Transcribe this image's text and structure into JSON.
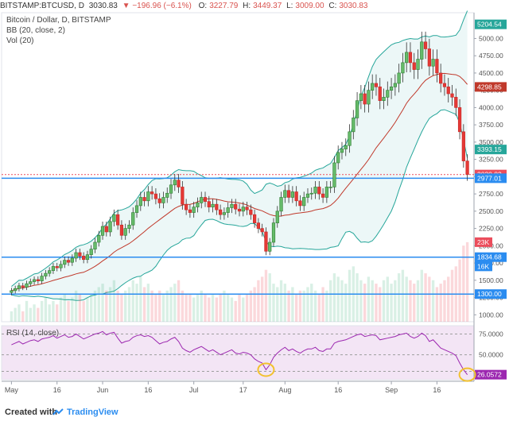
{
  "header": {
    "symbol": "BITSTAMP:BTCUSD, D",
    "last": "3030.83",
    "change": "−196.96 (−6.1%)",
    "o_label": "O:",
    "o": "3227.79",
    "h_label": "H:",
    "h": "3449.37",
    "l_label": "L:",
    "l": "3009.00",
    "c_label": "C:",
    "c": "3030.83"
  },
  "legend": {
    "title": "Bitcoin / Dollar, D, BITSTAMP",
    "bb": "BB (20, close, 2)",
    "vol": "Vol (20)",
    "rsi": "RSI (14, close)"
  },
  "colors": {
    "up": "#53b987",
    "down": "#eb4d5c",
    "accent": "#2a8cf0",
    "bb": "#26a69a",
    "ma": "#c0392b",
    "rsi": "#9c27b0"
  },
  "footer": {
    "created": "Created with",
    "brand": "TradingView"
  },
  "chart_data": [
    {
      "type": "candlestick",
      "title": "Bitcoin / Dollar, D, BITSTAMP",
      "x_ticks": [
        "May",
        "16",
        "Jun",
        "16",
        "Jul",
        "17",
        "Aug",
        "16",
        "Sep",
        "16"
      ],
      "y_ticks": [
        "5000.00",
        "4750.00",
        "4500.00",
        "4250.00",
        "4000.00",
        "3750.00",
        "3500.00",
        "3250.00",
        "3000.00",
        "2750.00",
        "2500.00",
        "2250.00",
        "2000.00",
        "1750.00",
        "1500.00",
        "1250.00",
        "1000.00"
      ],
      "ylim": [
        900,
        5350
      ],
      "price_labels": [
        {
          "text": "5204.54",
          "value": 5204.54,
          "color": "#26a69a"
        },
        {
          "text": "4298.85",
          "value": 4298.85,
          "color": "#c0392b"
        },
        {
          "text": "3393.15",
          "value": 3393.15,
          "color": "#26a69a"
        },
        {
          "text": "3030.83",
          "value": 3030.83,
          "color": "#eb4d5c"
        },
        {
          "text": "2977.01",
          "value": 2977.01,
          "color": "#2a8cf0"
        },
        {
          "text": "1834.68",
          "value": 1834.68,
          "color": "#2a8cf0"
        },
        {
          "text": "1300.00",
          "value": 1300.0,
          "color": "#2a8cf0"
        }
      ],
      "volume_labels": [
        {
          "text": "23K",
          "value": 23000,
          "color": "#eb4d5c"
        },
        {
          "text": "16K",
          "value": 16000,
          "color": "#2a8cf0"
        }
      ],
      "horizontal_lines": [
        2977.01,
        1834.68,
        1300.0
      ],
      "last_price": 3030.83,
      "closes": [
        1350,
        1380,
        1420,
        1400,
        1450,
        1480,
        1510,
        1490,
        1560,
        1600,
        1640,
        1700,
        1680,
        1730,
        1790,
        1760,
        1820,
        1900,
        1850,
        1800,
        1870,
        1950,
        2050,
        2150,
        2280,
        2200,
        2350,
        2450,
        2300,
        2150,
        2250,
        2300,
        2480,
        2580,
        2700,
        2650,
        2780,
        2750,
        2680,
        2620,
        2700,
        2760,
        2880,
        2950,
        2850,
        2600,
        2520,
        2480,
        2560,
        2620,
        2700,
        2640,
        2560,
        2600,
        2520,
        2450,
        2480,
        2550,
        2600,
        2530,
        2500,
        2560,
        2520,
        2450,
        2330,
        2250,
        2200,
        1920,
        2050,
        2330,
        2500,
        2700,
        2800,
        2700,
        2780,
        2650,
        2580,
        2700,
        2750,
        2760,
        2850,
        2750,
        2700,
        2850,
        2850,
        3200,
        3350,
        3400,
        3450,
        3650,
        3850,
        4100,
        4200,
        4050,
        4250,
        4350,
        4300,
        4100,
        4150,
        4250,
        4300,
        4350,
        4500,
        4650,
        4800,
        4650,
        4550,
        4700,
        4950,
        4850,
        4600,
        4700,
        4500,
        4350,
        4300,
        4200,
        4150,
        4000,
        3650,
        3227,
        3030.83
      ],
      "volumes": [
        3,
        4,
        5,
        3,
        6,
        4,
        5,
        4,
        6,
        7,
        5,
        6,
        5,
        7,
        8,
        6,
        7,
        9,
        8,
        6,
        7,
        8,
        9,
        10,
        11,
        9,
        10,
        12,
        9,
        8,
        9,
        10,
        12,
        11,
        13,
        10,
        11,
        9,
        8,
        9,
        8,
        9,
        10,
        11,
        12,
        9,
        8,
        8,
        7,
        8,
        9,
        8,
        7,
        8,
        7,
        8,
        9,
        8,
        7,
        6,
        8,
        7,
        8,
        9,
        10,
        12,
        13,
        15,
        14,
        11,
        10,
        12,
        11,
        9,
        10,
        8,
        9,
        9,
        10,
        11,
        9,
        8,
        10,
        9,
        12,
        14,
        13,
        12,
        11,
        15,
        16,
        14,
        12,
        11,
        13,
        12,
        11,
        10,
        12,
        13,
        11,
        12,
        14,
        15,
        13,
        12,
        11,
        12,
        15,
        14,
        13,
        12,
        10,
        11,
        12,
        13,
        15,
        16,
        18,
        22,
        23
      ],
      "rsi_ticks": [
        "75.0000",
        "50.0000"
      ],
      "rsi_ylim": [
        20,
        85
      ],
      "rsi_last": "26.0572",
      "rsi": [
        62,
        64,
        66,
        63,
        65,
        67,
        68,
        66,
        69,
        70,
        71,
        73,
        70,
        72,
        74,
        71,
        72,
        75,
        72,
        69,
        71,
        73,
        75,
        76,
        78,
        74,
        76,
        77,
        70,
        64,
        66,
        67,
        71,
        73,
        74,
        72,
        73,
        71,
        67,
        63,
        65,
        66,
        69,
        71,
        66,
        58,
        55,
        53,
        56,
        58,
        60,
        57,
        54,
        56,
        53,
        50,
        52,
        54,
        56,
        52,
        51,
        53,
        52,
        50,
        45,
        42,
        40,
        32,
        38,
        47,
        52,
        56,
        59,
        55,
        57,
        54,
        52,
        55,
        57,
        57,
        59,
        55,
        54,
        57,
        57,
        64,
        66,
        67,
        68,
        70,
        72,
        74,
        75,
        72,
        73,
        74,
        73,
        68,
        69,
        70,
        71,
        72,
        74,
        75,
        76,
        72,
        70,
        72,
        76,
        73,
        66,
        68,
        63,
        58,
        56,
        54,
        52,
        49,
        40,
        32,
        26.0572
      ]
    }
  ]
}
